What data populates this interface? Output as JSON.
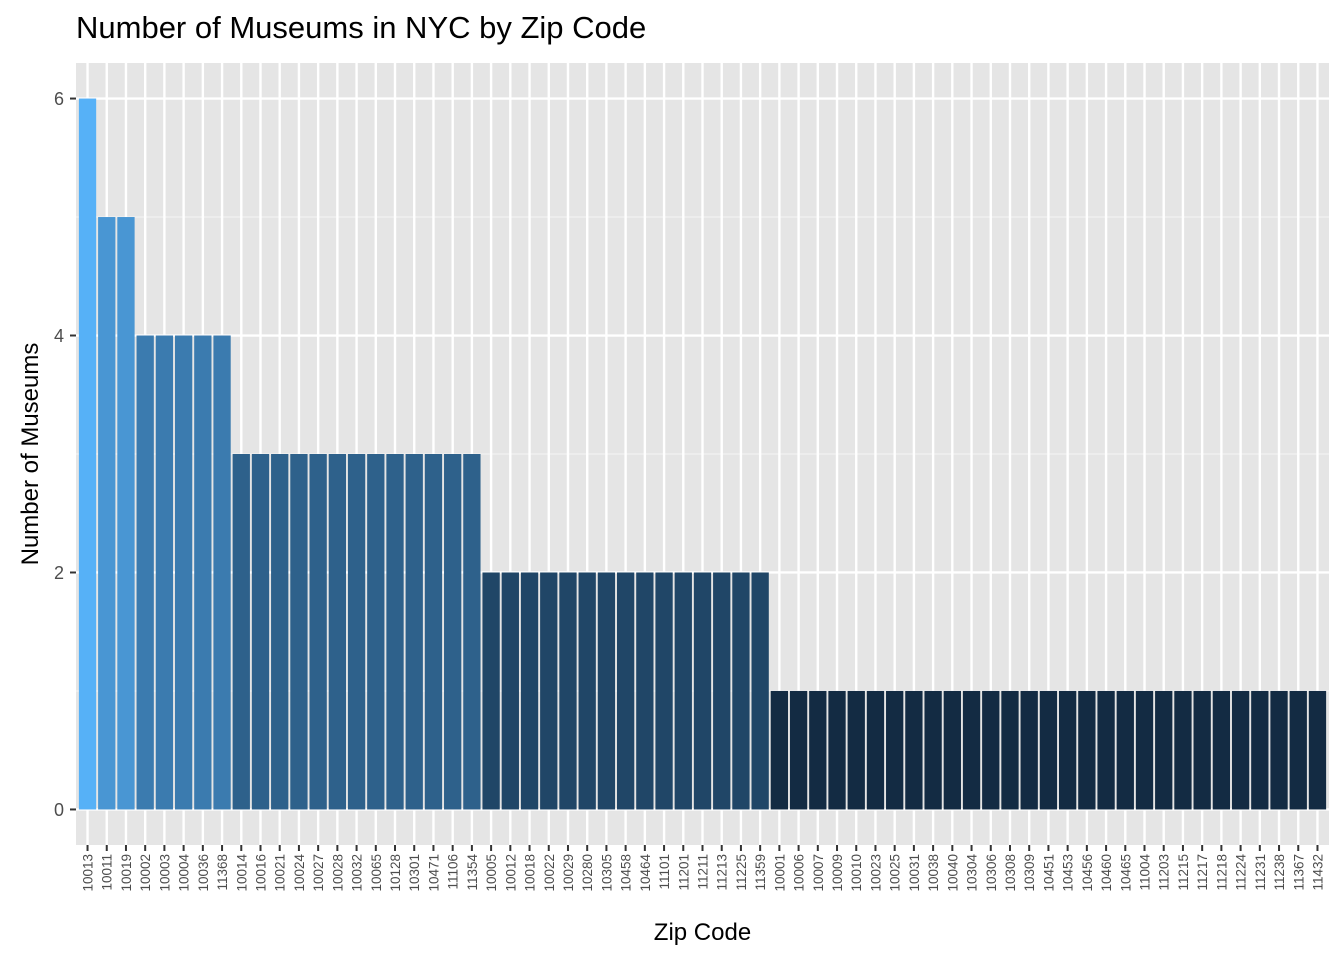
{
  "chart_data": {
    "type": "bar",
    "title": "Number of Museums in NYC by Zip Code",
    "xlabel": "Zip Code",
    "ylabel": "Number of Museums",
    "ylim": [
      0,
      6
    ],
    "yticks": [
      0,
      2,
      4,
      6
    ],
    "grid": true,
    "fill_scale": {
      "low": "#132B43",
      "high": "#56B1F7",
      "domain": [
        1,
        6
      ]
    },
    "panel_background": "#E5E5E5",
    "categories": [
      "10013",
      "10011",
      "10019",
      "10002",
      "10003",
      "10004",
      "10036",
      "11368",
      "10014",
      "10016",
      "10021",
      "10024",
      "10027",
      "10028",
      "10032",
      "10065",
      "10128",
      "10301",
      "10471",
      "11106",
      "11354",
      "10005",
      "10012",
      "10018",
      "10022",
      "10029",
      "10280",
      "10305",
      "10458",
      "10464",
      "11101",
      "11201",
      "11211",
      "11213",
      "11225",
      "11359",
      "10001",
      "10006",
      "10007",
      "10009",
      "10010",
      "10023",
      "10025",
      "10031",
      "10038",
      "10040",
      "10304",
      "10306",
      "10308",
      "10309",
      "10451",
      "10453",
      "10456",
      "10460",
      "10465",
      "11004",
      "11203",
      "11215",
      "11217",
      "11218",
      "11224",
      "11231",
      "11238",
      "11367",
      "11432"
    ],
    "values": [
      6,
      5,
      5,
      4,
      4,
      4,
      4,
      4,
      3,
      3,
      3,
      3,
      3,
      3,
      3,
      3,
      3,
      3,
      3,
      3,
      3,
      2,
      2,
      2,
      2,
      2,
      2,
      2,
      2,
      2,
      2,
      2,
      2,
      2,
      2,
      2,
      1,
      1,
      1,
      1,
      1,
      1,
      1,
      1,
      1,
      1,
      1,
      1,
      1,
      1,
      1,
      1,
      1,
      1,
      1,
      1,
      1,
      1,
      1,
      1,
      1,
      1,
      1,
      1,
      1
    ]
  }
}
